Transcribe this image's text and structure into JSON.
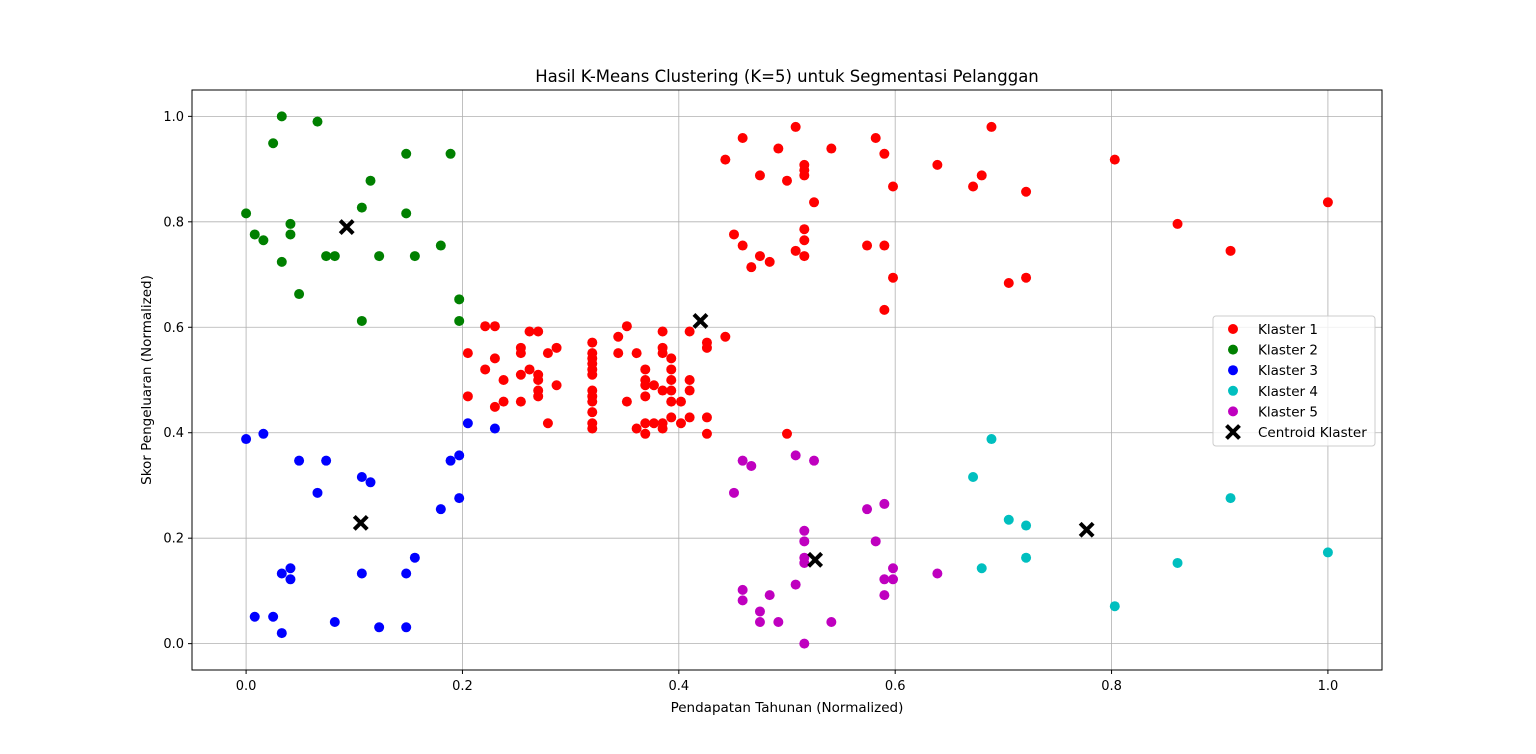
{
  "chart_data": {
    "type": "scatter",
    "title": "Hasil K-Means Clustering (K=5) untuk Segmentasi Pelanggan",
    "xlabel": "Pendapatan Tahunan (Normalized)",
    "ylabel": "Skor Pengeluaran (Normalized)",
    "xlim": [
      -0.05,
      1.05
    ],
    "ylim": [
      -0.05,
      1.05
    ],
    "xticks": [
      "0.0",
      "0.2",
      "0.4",
      "0.6",
      "0.8",
      "1.0"
    ],
    "yticks": [
      "0.0",
      "0.2",
      "0.4",
      "0.6",
      "0.8",
      "1.0"
    ],
    "grid": true,
    "legend_position": "center-right",
    "series": [
      {
        "name": "Klaster 1",
        "color": "#ff0000",
        "points": [
          [
            0.443,
            0.918
          ],
          [
            0.459,
            0.959
          ],
          [
            0.475,
            0.888
          ],
          [
            0.492,
            0.939
          ],
          [
            0.508,
            0.98
          ],
          [
            0.516,
            0.908
          ],
          [
            0.516,
            0.898
          ],
          [
            0.516,
            0.888
          ],
          [
            0.5,
            0.878
          ],
          [
            0.541,
            0.939
          ],
          [
            0.525,
            0.837
          ],
          [
            0.582,
            0.959
          ],
          [
            0.59,
            0.929
          ],
          [
            0.598,
            0.867
          ],
          [
            0.639,
            0.908
          ],
          [
            0.672,
            0.867
          ],
          [
            0.68,
            0.888
          ],
          [
            0.689,
            0.98
          ],
          [
            0.721,
            0.857
          ],
          [
            0.803,
            0.918
          ],
          [
            0.861,
            0.796
          ],
          [
            0.91,
            0.745
          ],
          [
            1.0,
            0.837
          ],
          [
            0.451,
            0.776
          ],
          [
            0.459,
            0.755
          ],
          [
            0.467,
            0.714
          ],
          [
            0.475,
            0.735
          ],
          [
            0.484,
            0.724
          ],
          [
            0.508,
            0.745
          ],
          [
            0.516,
            0.786
          ],
          [
            0.516,
            0.765
          ],
          [
            0.516,
            0.735
          ],
          [
            0.574,
            0.755
          ],
          [
            0.59,
            0.755
          ],
          [
            0.598,
            0.694
          ],
          [
            0.59,
            0.633
          ],
          [
            0.705,
            0.684
          ],
          [
            0.721,
            0.694
          ],
          [
            0.205,
            0.551
          ],
          [
            0.205,
            0.469
          ],
          [
            0.221,
            0.52
          ],
          [
            0.221,
            0.602
          ],
          [
            0.23,
            0.602
          ],
          [
            0.23,
            0.541
          ],
          [
            0.23,
            0.449
          ],
          [
            0.238,
            0.5
          ],
          [
            0.238,
            0.459
          ],
          [
            0.254,
            0.561
          ],
          [
            0.254,
            0.551
          ],
          [
            0.254,
            0.51
          ],
          [
            0.254,
            0.459
          ],
          [
            0.262,
            0.592
          ],
          [
            0.262,
            0.52
          ],
          [
            0.27,
            0.592
          ],
          [
            0.27,
            0.51
          ],
          [
            0.27,
            0.5
          ],
          [
            0.27,
            0.48
          ],
          [
            0.27,
            0.469
          ],
          [
            0.279,
            0.551
          ],
          [
            0.279,
            0.418
          ],
          [
            0.287,
            0.561
          ],
          [
            0.287,
            0.49
          ],
          [
            0.32,
            0.571
          ],
          [
            0.32,
            0.551
          ],
          [
            0.32,
            0.541
          ],
          [
            0.32,
            0.531
          ],
          [
            0.32,
            0.52
          ],
          [
            0.32,
            0.51
          ],
          [
            0.32,
            0.48
          ],
          [
            0.32,
            0.469
          ],
          [
            0.32,
            0.459
          ],
          [
            0.32,
            0.439
          ],
          [
            0.32,
            0.418
          ],
          [
            0.32,
            0.408
          ],
          [
            0.344,
            0.582
          ],
          [
            0.344,
            0.551
          ],
          [
            0.352,
            0.602
          ],
          [
            0.352,
            0.459
          ],
          [
            0.361,
            0.551
          ],
          [
            0.361,
            0.408
          ],
          [
            0.369,
            0.52
          ],
          [
            0.369,
            0.5
          ],
          [
            0.369,
            0.49
          ],
          [
            0.369,
            0.469
          ],
          [
            0.369,
            0.418
          ],
          [
            0.369,
            0.398
          ],
          [
            0.377,
            0.49
          ],
          [
            0.377,
            0.418
          ],
          [
            0.385,
            0.592
          ],
          [
            0.385,
            0.561
          ],
          [
            0.385,
            0.551
          ],
          [
            0.385,
            0.48
          ],
          [
            0.385,
            0.418
          ],
          [
            0.385,
            0.408
          ],
          [
            0.393,
            0.541
          ],
          [
            0.393,
            0.52
          ],
          [
            0.393,
            0.5
          ],
          [
            0.393,
            0.48
          ],
          [
            0.393,
            0.459
          ],
          [
            0.393,
            0.429
          ],
          [
            0.402,
            0.459
          ],
          [
            0.402,
            0.418
          ],
          [
            0.41,
            0.592
          ],
          [
            0.41,
            0.5
          ],
          [
            0.41,
            0.48
          ],
          [
            0.41,
            0.429
          ],
          [
            0.426,
            0.571
          ],
          [
            0.426,
            0.561
          ],
          [
            0.426,
            0.429
          ],
          [
            0.426,
            0.398
          ],
          [
            0.443,
            0.582
          ],
          [
            0.5,
            0.398
          ]
        ]
      },
      {
        "name": "Klaster 2",
        "color": "#008000",
        "points": [
          [
            0.033,
            1.0
          ],
          [
            0.066,
            0.99
          ],
          [
            0.025,
            0.949
          ],
          [
            0.148,
            0.929
          ],
          [
            0.189,
            0.929
          ],
          [
            0.115,
            0.878
          ],
          [
            0.0,
            0.816
          ],
          [
            0.107,
            0.827
          ],
          [
            0.148,
            0.816
          ],
          [
            0.041,
            0.796
          ],
          [
            0.008,
            0.776
          ],
          [
            0.016,
            0.765
          ],
          [
            0.041,
            0.776
          ],
          [
            0.033,
            0.724
          ],
          [
            0.074,
            0.735
          ],
          [
            0.082,
            0.735
          ],
          [
            0.123,
            0.735
          ],
          [
            0.156,
            0.735
          ],
          [
            0.18,
            0.755
          ],
          [
            0.049,
            0.663
          ],
          [
            0.197,
            0.653
          ],
          [
            0.107,
            0.612
          ],
          [
            0.197,
            0.612
          ]
        ]
      },
      {
        "name": "Klaster 3",
        "color": "#0000ff",
        "points": [
          [
            0.0,
            0.388
          ],
          [
            0.016,
            0.398
          ],
          [
            0.049,
            0.347
          ],
          [
            0.074,
            0.347
          ],
          [
            0.066,
            0.286
          ],
          [
            0.107,
            0.316
          ],
          [
            0.115,
            0.306
          ],
          [
            0.189,
            0.347
          ],
          [
            0.197,
            0.357
          ],
          [
            0.205,
            0.418
          ],
          [
            0.23,
            0.408
          ],
          [
            0.197,
            0.276
          ],
          [
            0.18,
            0.255
          ],
          [
            0.156,
            0.163
          ],
          [
            0.033,
            0.133
          ],
          [
            0.041,
            0.143
          ],
          [
            0.041,
            0.122
          ],
          [
            0.107,
            0.133
          ],
          [
            0.148,
            0.133
          ],
          [
            0.008,
            0.051
          ],
          [
            0.025,
            0.051
          ],
          [
            0.033,
            0.02
          ],
          [
            0.082,
            0.041
          ],
          [
            0.123,
            0.031
          ],
          [
            0.148,
            0.031
          ]
        ]
      },
      {
        "name": "Klaster 4",
        "color": "#00bfbf",
        "points": [
          [
            0.689,
            0.388
          ],
          [
            0.672,
            0.316
          ],
          [
            0.705,
            0.235
          ],
          [
            0.721,
            0.224
          ],
          [
            0.91,
            0.276
          ],
          [
            0.721,
            0.163
          ],
          [
            0.68,
            0.143
          ],
          [
            0.861,
            0.153
          ],
          [
            1.0,
            0.173
          ],
          [
            0.803,
            0.071
          ]
        ]
      },
      {
        "name": "Klaster 5",
        "color": "#bf00bf",
        "points": [
          [
            0.459,
            0.347
          ],
          [
            0.467,
            0.337
          ],
          [
            0.508,
            0.357
          ],
          [
            0.525,
            0.347
          ],
          [
            0.451,
            0.286
          ],
          [
            0.574,
            0.255
          ],
          [
            0.59,
            0.265
          ],
          [
            0.516,
            0.214
          ],
          [
            0.516,
            0.194
          ],
          [
            0.582,
            0.194
          ],
          [
            0.516,
            0.163
          ],
          [
            0.516,
            0.153
          ],
          [
            0.598,
            0.143
          ],
          [
            0.598,
            0.122
          ],
          [
            0.59,
            0.122
          ],
          [
            0.639,
            0.133
          ],
          [
            0.459,
            0.102
          ],
          [
            0.459,
            0.082
          ],
          [
            0.484,
            0.092
          ],
          [
            0.508,
            0.112
          ],
          [
            0.59,
            0.092
          ],
          [
            0.475,
            0.061
          ],
          [
            0.475,
            0.041
          ],
          [
            0.492,
            0.041
          ],
          [
            0.541,
            0.041
          ],
          [
            0.516,
            0.0
          ]
        ]
      }
    ],
    "centroids": {
      "name": "Centroid Klaster",
      "color": "#000000",
      "marker": "x",
      "points": [
        [
          0.093,
          0.79
        ],
        [
          0.42,
          0.612
        ],
        [
          0.106,
          0.229
        ],
        [
          0.777,
          0.216
        ],
        [
          0.526,
          0.159
        ]
      ]
    }
  }
}
